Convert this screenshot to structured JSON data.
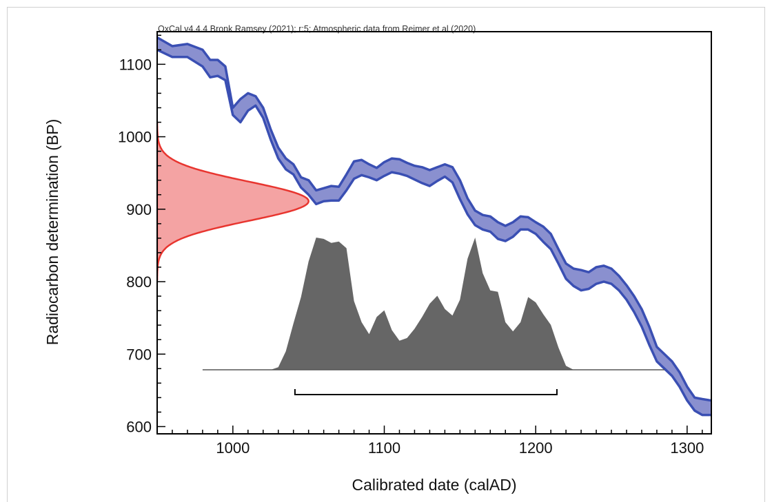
{
  "chart_data": {
    "type": "area",
    "header": "OxCal v4.4.4 Bronk Ramsey (2021); r:5; Atmospheric data from Reimer et al (2020)",
    "xlabel": "Calibrated date (calAD)",
    "ylabel": "Radiocarbon determination (BP)",
    "xlim": [
      950,
      1316
    ],
    "ylim": [
      590,
      1145
    ],
    "x_ticks": [
      1000,
      1100,
      1200,
      1300
    ],
    "y_ticks": [
      600,
      700,
      800,
      900,
      1000,
      1100
    ],
    "grid": false,
    "colors": {
      "calibration_curve": "#3a4fb3",
      "calibration_fill": "#8a90cf",
      "radiocarbon_fill": "#f4a3a3",
      "radiocarbon_stroke": "#e8352f",
      "calibrated_fill": "#666666"
    },
    "calibration_curve": {
      "x": [
        950,
        960,
        970,
        980,
        985,
        990,
        995,
        1000,
        1005,
        1010,
        1015,
        1020,
        1025,
        1030,
        1035,
        1040,
        1045,
        1050,
        1055,
        1060,
        1065,
        1070,
        1075,
        1080,
        1085,
        1090,
        1095,
        1100,
        1105,
        1110,
        1115,
        1120,
        1125,
        1130,
        1135,
        1140,
        1145,
        1150,
        1155,
        1160,
        1165,
        1170,
        1175,
        1180,
        1185,
        1190,
        1195,
        1200,
        1205,
        1210,
        1215,
        1220,
        1225,
        1230,
        1235,
        1240,
        1245,
        1250,
        1255,
        1260,
        1265,
        1270,
        1275,
        1280,
        1285,
        1290,
        1295,
        1300,
        1305,
        1310,
        1316
      ],
      "upper": [
        1137,
        1125,
        1128,
        1120,
        1106,
        1106,
        1097,
        1040,
        1052,
        1060,
        1056,
        1040,
        1010,
        985,
        970,
        962,
        944,
        940,
        926,
        929,
        932,
        931,
        948,
        966,
        968,
        962,
        957,
        965,
        970,
        969,
        964,
        960,
        958,
        954,
        958,
        962,
        958,
        940,
        915,
        898,
        892,
        890,
        882,
        877,
        882,
        890,
        889,
        882,
        876,
        866,
        845,
        825,
        818,
        816,
        813,
        820,
        822,
        818,
        808,
        795,
        780,
        762,
        738,
        710,
        700,
        690,
        675,
        655,
        640,
        638,
        636
      ],
      "lower": [
        1120,
        1110,
        1110,
        1097,
        1082,
        1084,
        1078,
        1030,
        1020,
        1036,
        1043,
        1026,
        996,
        970,
        955,
        948,
        930,
        920,
        907,
        911,
        912,
        912,
        926,
        942,
        947,
        944,
        940,
        946,
        951,
        949,
        946,
        941,
        936,
        932,
        939,
        945,
        937,
        914,
        893,
        878,
        872,
        869,
        859,
        856,
        862,
        872,
        872,
        866,
        855,
        845,
        825,
        804,
        794,
        788,
        790,
        797,
        800,
        797,
        788,
        775,
        758,
        738,
        713,
        690,
        680,
        670,
        655,
        636,
        622,
        616,
        616
      ]
    },
    "radiocarbon_date": {
      "mean_bp": 911,
      "sigma_bp": 27
    },
    "calibrated_distribution": {
      "x": [
        980,
        1025,
        1030,
        1035,
        1040,
        1045,
        1050,
        1055,
        1060,
        1065,
        1070,
        1075,
        1080,
        1085,
        1090,
        1095,
        1100,
        1105,
        1110,
        1115,
        1120,
        1125,
        1130,
        1135,
        1140,
        1145,
        1150,
        1155,
        1160,
        1165,
        1170,
        1175,
        1180,
        1185,
        1190,
        1195,
        1200,
        1205,
        1210,
        1215,
        1220,
        1225,
        1285
      ],
      "p": [
        0,
        0,
        0.02,
        0.14,
        0.35,
        0.55,
        0.82,
        1.0,
        0.99,
        0.96,
        0.97,
        0.92,
        0.52,
        0.36,
        0.27,
        0.4,
        0.45,
        0.3,
        0.22,
        0.24,
        0.31,
        0.4,
        0.5,
        0.56,
        0.46,
        0.41,
        0.53,
        0.84,
        1.0,
        0.73,
        0.6,
        0.59,
        0.36,
        0.29,
        0.36,
        0.55,
        0.51,
        0.42,
        0.34,
        0.17,
        0.03,
        0,
        0
      ]
    },
    "range_bar": {
      "from": 1041,
      "to": 1214
    }
  }
}
